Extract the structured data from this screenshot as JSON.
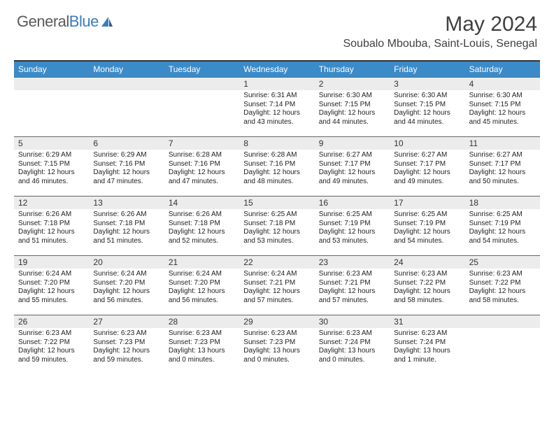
{
  "brand": {
    "name_part1": "General",
    "name_part2": "Blue"
  },
  "title": "May 2024",
  "location": "Soubalo Mbouba, Saint-Louis, Senegal",
  "colors": {
    "header_bg": "#3b8bc9",
    "header_text": "#ffffff",
    "daynum_bg": "#ececec",
    "border": "#666666",
    "top_border": "#333333",
    "body_text": "#222222",
    "title_text": "#404040",
    "brand_gray": "#5a5a5a",
    "brand_blue": "#3b7bbf"
  },
  "typography": {
    "title_fontsize": 30,
    "location_fontsize": 16,
    "dayheader_fontsize": 12,
    "daynum_fontsize": 12,
    "details_fontsize": 10
  },
  "day_names": [
    "Sunday",
    "Monday",
    "Tuesday",
    "Wednesday",
    "Thursday",
    "Friday",
    "Saturday"
  ],
  "weeks": [
    [
      {
        "n": "",
        "sunrise": "",
        "sunset": "",
        "daylight": ""
      },
      {
        "n": "",
        "sunrise": "",
        "sunset": "",
        "daylight": ""
      },
      {
        "n": "",
        "sunrise": "",
        "sunset": "",
        "daylight": ""
      },
      {
        "n": "1",
        "sunrise": "Sunrise: 6:31 AM",
        "sunset": "Sunset: 7:14 PM",
        "daylight": "Daylight: 12 hours and 43 minutes."
      },
      {
        "n": "2",
        "sunrise": "Sunrise: 6:30 AM",
        "sunset": "Sunset: 7:15 PM",
        "daylight": "Daylight: 12 hours and 44 minutes."
      },
      {
        "n": "3",
        "sunrise": "Sunrise: 6:30 AM",
        "sunset": "Sunset: 7:15 PM",
        "daylight": "Daylight: 12 hours and 44 minutes."
      },
      {
        "n": "4",
        "sunrise": "Sunrise: 6:30 AM",
        "sunset": "Sunset: 7:15 PM",
        "daylight": "Daylight: 12 hours and 45 minutes."
      }
    ],
    [
      {
        "n": "5",
        "sunrise": "Sunrise: 6:29 AM",
        "sunset": "Sunset: 7:15 PM",
        "daylight": "Daylight: 12 hours and 46 minutes."
      },
      {
        "n": "6",
        "sunrise": "Sunrise: 6:29 AM",
        "sunset": "Sunset: 7:16 PM",
        "daylight": "Daylight: 12 hours and 47 minutes."
      },
      {
        "n": "7",
        "sunrise": "Sunrise: 6:28 AM",
        "sunset": "Sunset: 7:16 PM",
        "daylight": "Daylight: 12 hours and 47 minutes."
      },
      {
        "n": "8",
        "sunrise": "Sunrise: 6:28 AM",
        "sunset": "Sunset: 7:16 PM",
        "daylight": "Daylight: 12 hours and 48 minutes."
      },
      {
        "n": "9",
        "sunrise": "Sunrise: 6:27 AM",
        "sunset": "Sunset: 7:17 PM",
        "daylight": "Daylight: 12 hours and 49 minutes."
      },
      {
        "n": "10",
        "sunrise": "Sunrise: 6:27 AM",
        "sunset": "Sunset: 7:17 PM",
        "daylight": "Daylight: 12 hours and 49 minutes."
      },
      {
        "n": "11",
        "sunrise": "Sunrise: 6:27 AM",
        "sunset": "Sunset: 7:17 PM",
        "daylight": "Daylight: 12 hours and 50 minutes."
      }
    ],
    [
      {
        "n": "12",
        "sunrise": "Sunrise: 6:26 AM",
        "sunset": "Sunset: 7:18 PM",
        "daylight": "Daylight: 12 hours and 51 minutes."
      },
      {
        "n": "13",
        "sunrise": "Sunrise: 6:26 AM",
        "sunset": "Sunset: 7:18 PM",
        "daylight": "Daylight: 12 hours and 51 minutes."
      },
      {
        "n": "14",
        "sunrise": "Sunrise: 6:26 AM",
        "sunset": "Sunset: 7:18 PM",
        "daylight": "Daylight: 12 hours and 52 minutes."
      },
      {
        "n": "15",
        "sunrise": "Sunrise: 6:25 AM",
        "sunset": "Sunset: 7:18 PM",
        "daylight": "Daylight: 12 hours and 53 minutes."
      },
      {
        "n": "16",
        "sunrise": "Sunrise: 6:25 AM",
        "sunset": "Sunset: 7:19 PM",
        "daylight": "Daylight: 12 hours and 53 minutes."
      },
      {
        "n": "17",
        "sunrise": "Sunrise: 6:25 AM",
        "sunset": "Sunset: 7:19 PM",
        "daylight": "Daylight: 12 hours and 54 minutes."
      },
      {
        "n": "18",
        "sunrise": "Sunrise: 6:25 AM",
        "sunset": "Sunset: 7:19 PM",
        "daylight": "Daylight: 12 hours and 54 minutes."
      }
    ],
    [
      {
        "n": "19",
        "sunrise": "Sunrise: 6:24 AM",
        "sunset": "Sunset: 7:20 PM",
        "daylight": "Daylight: 12 hours and 55 minutes."
      },
      {
        "n": "20",
        "sunrise": "Sunrise: 6:24 AM",
        "sunset": "Sunset: 7:20 PM",
        "daylight": "Daylight: 12 hours and 56 minutes."
      },
      {
        "n": "21",
        "sunrise": "Sunrise: 6:24 AM",
        "sunset": "Sunset: 7:20 PM",
        "daylight": "Daylight: 12 hours and 56 minutes."
      },
      {
        "n": "22",
        "sunrise": "Sunrise: 6:24 AM",
        "sunset": "Sunset: 7:21 PM",
        "daylight": "Daylight: 12 hours and 57 minutes."
      },
      {
        "n": "23",
        "sunrise": "Sunrise: 6:23 AM",
        "sunset": "Sunset: 7:21 PM",
        "daylight": "Daylight: 12 hours and 57 minutes."
      },
      {
        "n": "24",
        "sunrise": "Sunrise: 6:23 AM",
        "sunset": "Sunset: 7:22 PM",
        "daylight": "Daylight: 12 hours and 58 minutes."
      },
      {
        "n": "25",
        "sunrise": "Sunrise: 6:23 AM",
        "sunset": "Sunset: 7:22 PM",
        "daylight": "Daylight: 12 hours and 58 minutes."
      }
    ],
    [
      {
        "n": "26",
        "sunrise": "Sunrise: 6:23 AM",
        "sunset": "Sunset: 7:22 PM",
        "daylight": "Daylight: 12 hours and 59 minutes."
      },
      {
        "n": "27",
        "sunrise": "Sunrise: 6:23 AM",
        "sunset": "Sunset: 7:23 PM",
        "daylight": "Daylight: 12 hours and 59 minutes."
      },
      {
        "n": "28",
        "sunrise": "Sunrise: 6:23 AM",
        "sunset": "Sunset: 7:23 PM",
        "daylight": "Daylight: 13 hours and 0 minutes."
      },
      {
        "n": "29",
        "sunrise": "Sunrise: 6:23 AM",
        "sunset": "Sunset: 7:23 PM",
        "daylight": "Daylight: 13 hours and 0 minutes."
      },
      {
        "n": "30",
        "sunrise": "Sunrise: 6:23 AM",
        "sunset": "Sunset: 7:24 PM",
        "daylight": "Daylight: 13 hours and 0 minutes."
      },
      {
        "n": "31",
        "sunrise": "Sunrise: 6:23 AM",
        "sunset": "Sunset: 7:24 PM",
        "daylight": "Daylight: 13 hours and 1 minute."
      },
      {
        "n": "",
        "sunrise": "",
        "sunset": "",
        "daylight": ""
      }
    ]
  ]
}
